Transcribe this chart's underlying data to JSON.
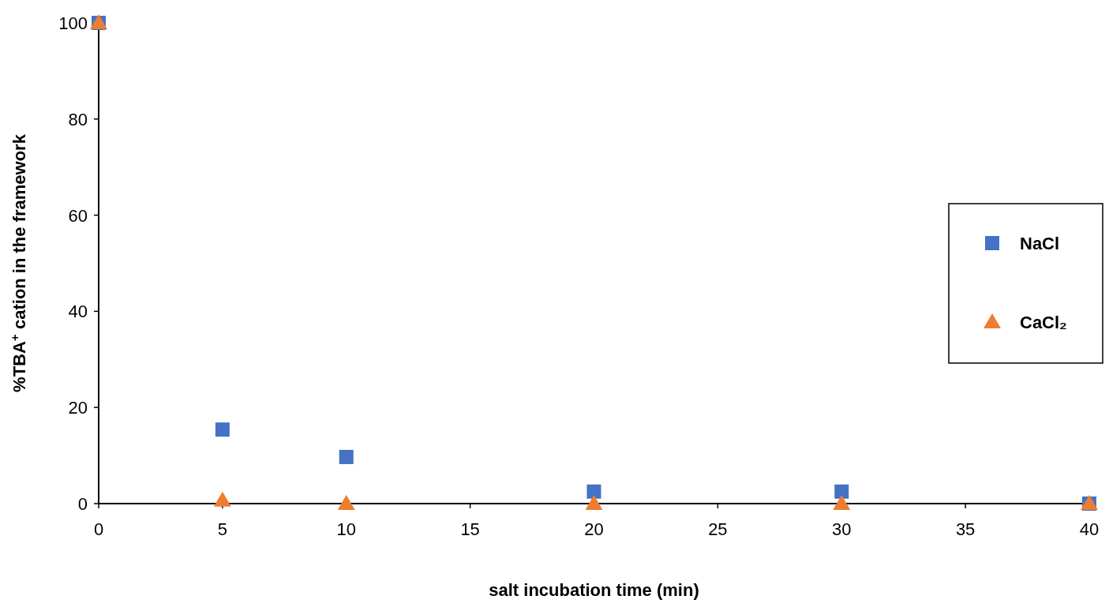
{
  "chart_data": {
    "type": "scatter",
    "xlabel": "salt incubation time (min)",
    "ylabel": "%TBA$^{+}$ cation in the framework",
    "xlim": [
      0,
      40
    ],
    "xticks": [
      0,
      5,
      10,
      15,
      20,
      25,
      30,
      35,
      40
    ],
    "ylim": [
      0,
      100
    ],
    "yticks": [
      0,
      20,
      40,
      60,
      80,
      100
    ],
    "grid": false,
    "legend": "right",
    "series": [
      {
        "name": "NaCl",
        "color": "#4472c4",
        "marker": "square",
        "x": [
          0,
          5,
          10,
          20,
          30,
          40
        ],
        "values": [
          100,
          15.4,
          9.7,
          2.5,
          2.5,
          0
        ]
      },
      {
        "name": "CaCl₂",
        "color": "#ed7d31",
        "marker": "triangle",
        "x": [
          0,
          5,
          10,
          20,
          30,
          40
        ],
        "values": [
          100,
          0.7,
          0,
          0,
          0,
          0
        ]
      }
    ]
  }
}
